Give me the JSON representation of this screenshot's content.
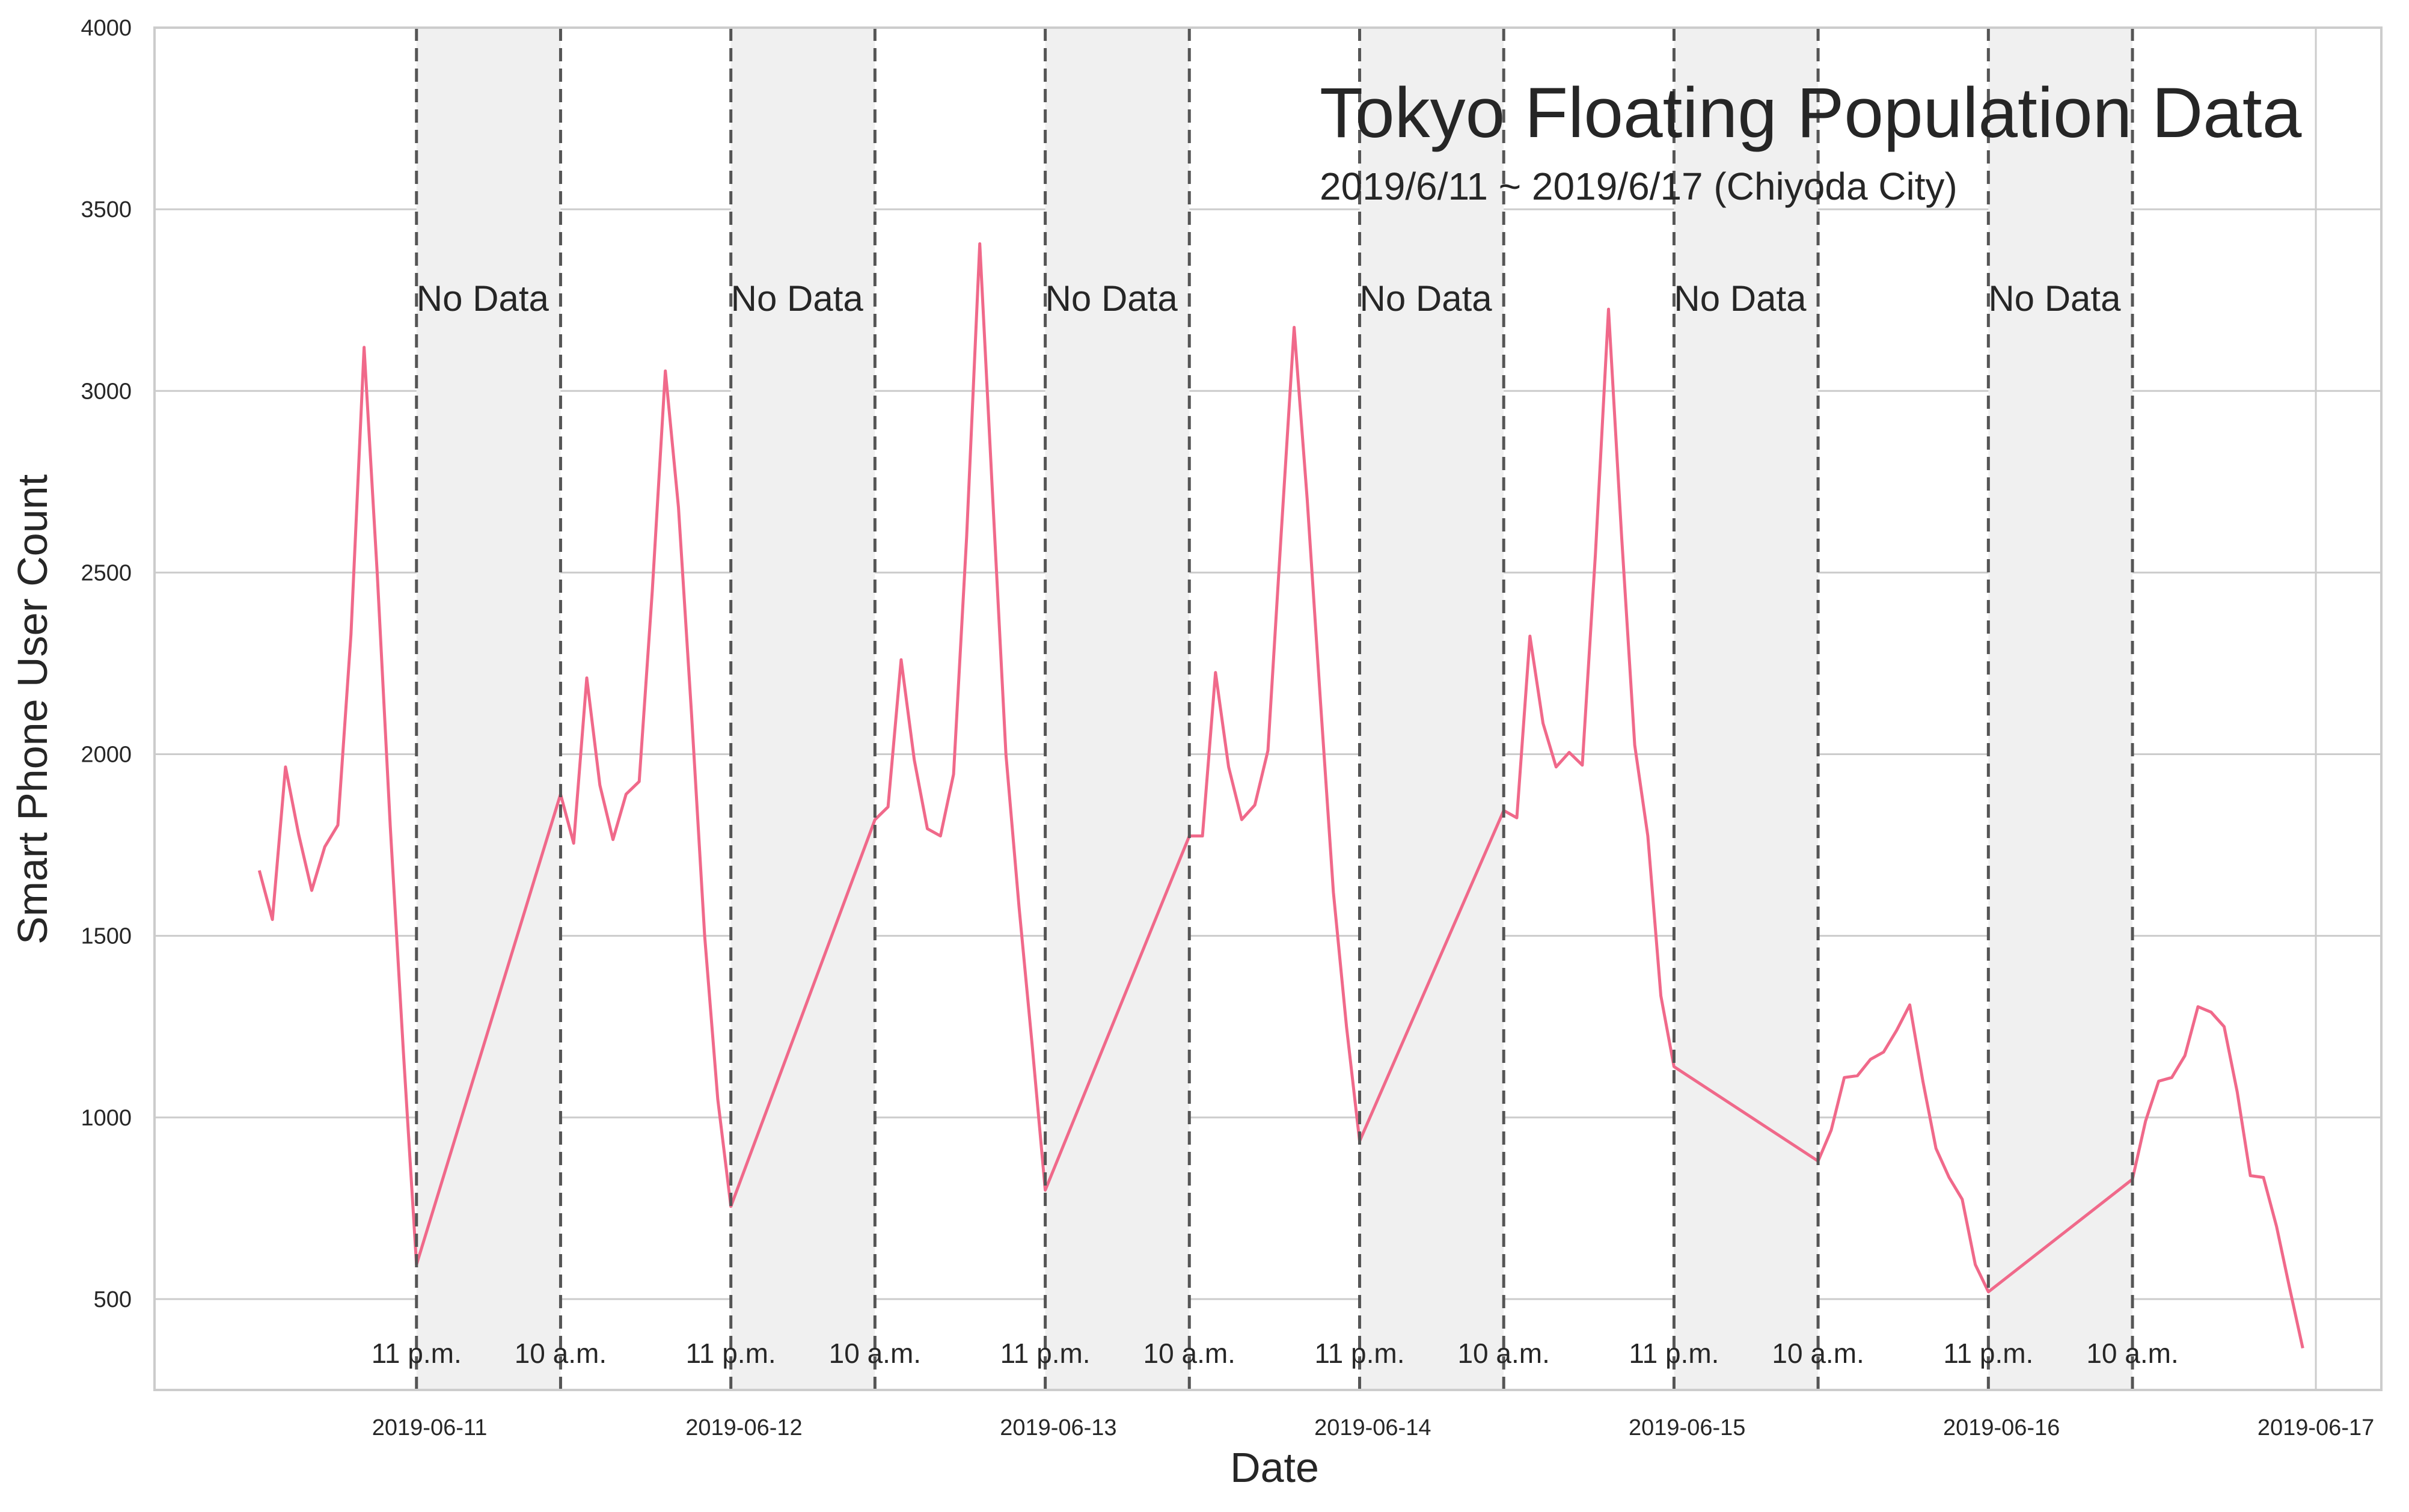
{
  "chart_data": {
    "type": "line",
    "title": "Tokyo Floating Population Data",
    "subtitle": "2019/6/11 ~ 2019/6/17 (Chiyoda City)",
    "xlabel": "Date",
    "ylabel": "Smart Phone User Count",
    "xlim": [
      "2019-06-10 03:00",
      "2019-06-17 05:00"
    ],
    "ylim": [
      250,
      4000
    ],
    "yticks": [
      500,
      1000,
      1500,
      2000,
      2500,
      3000,
      3500,
      4000
    ],
    "xticks": [
      {
        "x": "2019-06-11 00:00",
        "label": "2019-06-11"
      },
      {
        "x": "2019-06-12 00:00",
        "label": "2019-06-12"
      },
      {
        "x": "2019-06-13 00:00",
        "label": "2019-06-13"
      },
      {
        "x": "2019-06-14 00:00",
        "label": "2019-06-14"
      },
      {
        "x": "2019-06-15 00:00",
        "label": "2019-06-15"
      },
      {
        "x": "2019-06-16 00:00",
        "label": "2019-06-16"
      },
      {
        "x": "2019-06-17 00:00",
        "label": "2019-06-17"
      }
    ],
    "grid": true,
    "line_color": "#f0698a",
    "band_color": "#f0f0f0",
    "marker_color": "#555555",
    "no_data_periods": [
      {
        "start": "2019-06-10 23:00",
        "end": "2019-06-11 10:00",
        "label": "No Data",
        "start_label": "11 p.m.",
        "end_label": "10 a.m."
      },
      {
        "start": "2019-06-11 23:00",
        "end": "2019-06-12 10:00",
        "label": "No Data",
        "start_label": "11 p.m.",
        "end_label": "10 a.m."
      },
      {
        "start": "2019-06-12 23:00",
        "end": "2019-06-13 10:00",
        "label": "No Data",
        "start_label": "11 p.m.",
        "end_label": "10 a.m."
      },
      {
        "start": "2019-06-13 23:00",
        "end": "2019-06-14 10:00",
        "label": "No Data",
        "start_label": "11 p.m.",
        "end_label": "10 a.m."
      },
      {
        "start": "2019-06-14 23:00",
        "end": "2019-06-15 10:00",
        "label": "No Data",
        "start_label": "11 p.m.",
        "end_label": "10 a.m."
      },
      {
        "start": "2019-06-15 23:00",
        "end": "2019-06-16 10:00",
        "label": "No Data",
        "start_label": "11 p.m.",
        "end_label": "10 a.m."
      }
    ],
    "series": [
      {
        "points": [
          [
            "2019-06-10 11:00",
            1680
          ],
          [
            "2019-06-10 12:00",
            1545
          ],
          [
            "2019-06-10 13:00",
            1965
          ],
          [
            "2019-06-10 14:00",
            1780
          ],
          [
            "2019-06-10 15:00",
            1625
          ],
          [
            "2019-06-10 16:00",
            1745
          ],
          [
            "2019-06-10 17:00",
            1805
          ],
          [
            "2019-06-10 18:00",
            2330
          ],
          [
            "2019-06-10 19:00",
            3120
          ],
          [
            "2019-06-10 20:00",
            2500
          ],
          [
            "2019-06-10 21:00",
            1800
          ],
          [
            "2019-06-10 22:00",
            1180
          ],
          [
            "2019-06-10 23:00",
            595
          ],
          [
            "2019-06-11 10:00",
            1890
          ],
          [
            "2019-06-11 11:00",
            1755
          ],
          [
            "2019-06-11 12:00",
            2210
          ],
          [
            "2019-06-11 13:00",
            1915
          ],
          [
            "2019-06-11 14:00",
            1765
          ],
          [
            "2019-06-11 15:00",
            1890
          ],
          [
            "2019-06-11 16:00",
            1925
          ],
          [
            "2019-06-11 17:00",
            2450
          ],
          [
            "2019-06-11 18:00",
            3055
          ],
          [
            "2019-06-11 19:00",
            2680
          ],
          [
            "2019-06-11 20:00",
            2110
          ],
          [
            "2019-06-11 21:00",
            1500
          ],
          [
            "2019-06-11 22:00",
            1050
          ],
          [
            "2019-06-11 23:00",
            755
          ],
          [
            "2019-06-12 10:00",
            1820
          ],
          [
            "2019-06-12 11:00",
            1855
          ],
          [
            "2019-06-12 12:00",
            2260
          ],
          [
            "2019-06-12 13:00",
            1985
          ],
          [
            "2019-06-12 14:00",
            1795
          ],
          [
            "2019-06-12 15:00",
            1775
          ],
          [
            "2019-06-12 16:00",
            1945
          ],
          [
            "2019-06-12 17:00",
            2600
          ],
          [
            "2019-06-12 18:00",
            3405
          ],
          [
            "2019-06-12 19:00",
            2700
          ],
          [
            "2019-06-12 20:00",
            2000
          ],
          [
            "2019-06-12 21:00",
            1580
          ],
          [
            "2019-06-12 22:00",
            1200
          ],
          [
            "2019-06-12 23:00",
            800
          ],
          [
            "2019-06-13 10:00",
            1775
          ],
          [
            "2019-06-13 11:00",
            1775
          ],
          [
            "2019-06-13 12:00",
            2225
          ],
          [
            "2019-06-13 13:00",
            1965
          ],
          [
            "2019-06-13 14:00",
            1820
          ],
          [
            "2019-06-13 15:00",
            1860
          ],
          [
            "2019-06-13 16:00",
            2010
          ],
          [
            "2019-06-13 17:00",
            2600
          ],
          [
            "2019-06-13 18:00",
            3175
          ],
          [
            "2019-06-13 19:00",
            2700
          ],
          [
            "2019-06-13 20:00",
            2150
          ],
          [
            "2019-06-13 21:00",
            1620
          ],
          [
            "2019-06-13 22:00",
            1250
          ],
          [
            "2019-06-13 23:00",
            935
          ],
          [
            "2019-06-14 10:00",
            1845
          ],
          [
            "2019-06-14 11:00",
            1825
          ],
          [
            "2019-06-14 12:00",
            2325
          ],
          [
            "2019-06-14 13:00",
            2085
          ],
          [
            "2019-06-14 14:00",
            1965
          ],
          [
            "2019-06-14 15:00",
            2005
          ],
          [
            "2019-06-14 16:00",
            1970
          ],
          [
            "2019-06-14 17:00",
            2550
          ],
          [
            "2019-06-14 18:00",
            3225
          ],
          [
            "2019-06-14 19:00",
            2600
          ],
          [
            "2019-06-14 20:00",
            2025
          ],
          [
            "2019-06-14 21:00",
            1775
          ],
          [
            "2019-06-14 22:00",
            1335
          ],
          [
            "2019-06-14 23:00",
            1140
          ],
          [
            "2019-06-15 10:00",
            880
          ],
          [
            "2019-06-15 11:00",
            965
          ],
          [
            "2019-06-15 12:00",
            1110
          ],
          [
            "2019-06-15 13:00",
            1115
          ],
          [
            "2019-06-15 14:00",
            1160
          ],
          [
            "2019-06-15 15:00",
            1180
          ],
          [
            "2019-06-15 16:00",
            1240
          ],
          [
            "2019-06-15 17:00",
            1310
          ],
          [
            "2019-06-15 18:00",
            1100
          ],
          [
            "2019-06-15 19:00",
            915
          ],
          [
            "2019-06-15 20:00",
            835
          ],
          [
            "2019-06-15 21:00",
            775
          ],
          [
            "2019-06-15 22:00",
            595
          ],
          [
            "2019-06-15 23:00",
            520
          ],
          [
            "2019-06-16 10:00",
            830
          ],
          [
            "2019-06-16 11:00",
            990
          ],
          [
            "2019-06-16 12:00",
            1100
          ],
          [
            "2019-06-16 13:00",
            1110
          ],
          [
            "2019-06-16 14:00",
            1170
          ],
          [
            "2019-06-16 15:00",
            1305
          ],
          [
            "2019-06-16 16:00",
            1290
          ],
          [
            "2019-06-16 17:00",
            1250
          ],
          [
            "2019-06-16 18:00",
            1070
          ],
          [
            "2019-06-16 19:00",
            840
          ],
          [
            "2019-06-16 20:00",
            835
          ],
          [
            "2019-06-16 21:00",
            700
          ],
          [
            "2019-06-16 22:00",
            530
          ],
          [
            "2019-06-16 23:00",
            365
          ]
        ]
      }
    ]
  }
}
